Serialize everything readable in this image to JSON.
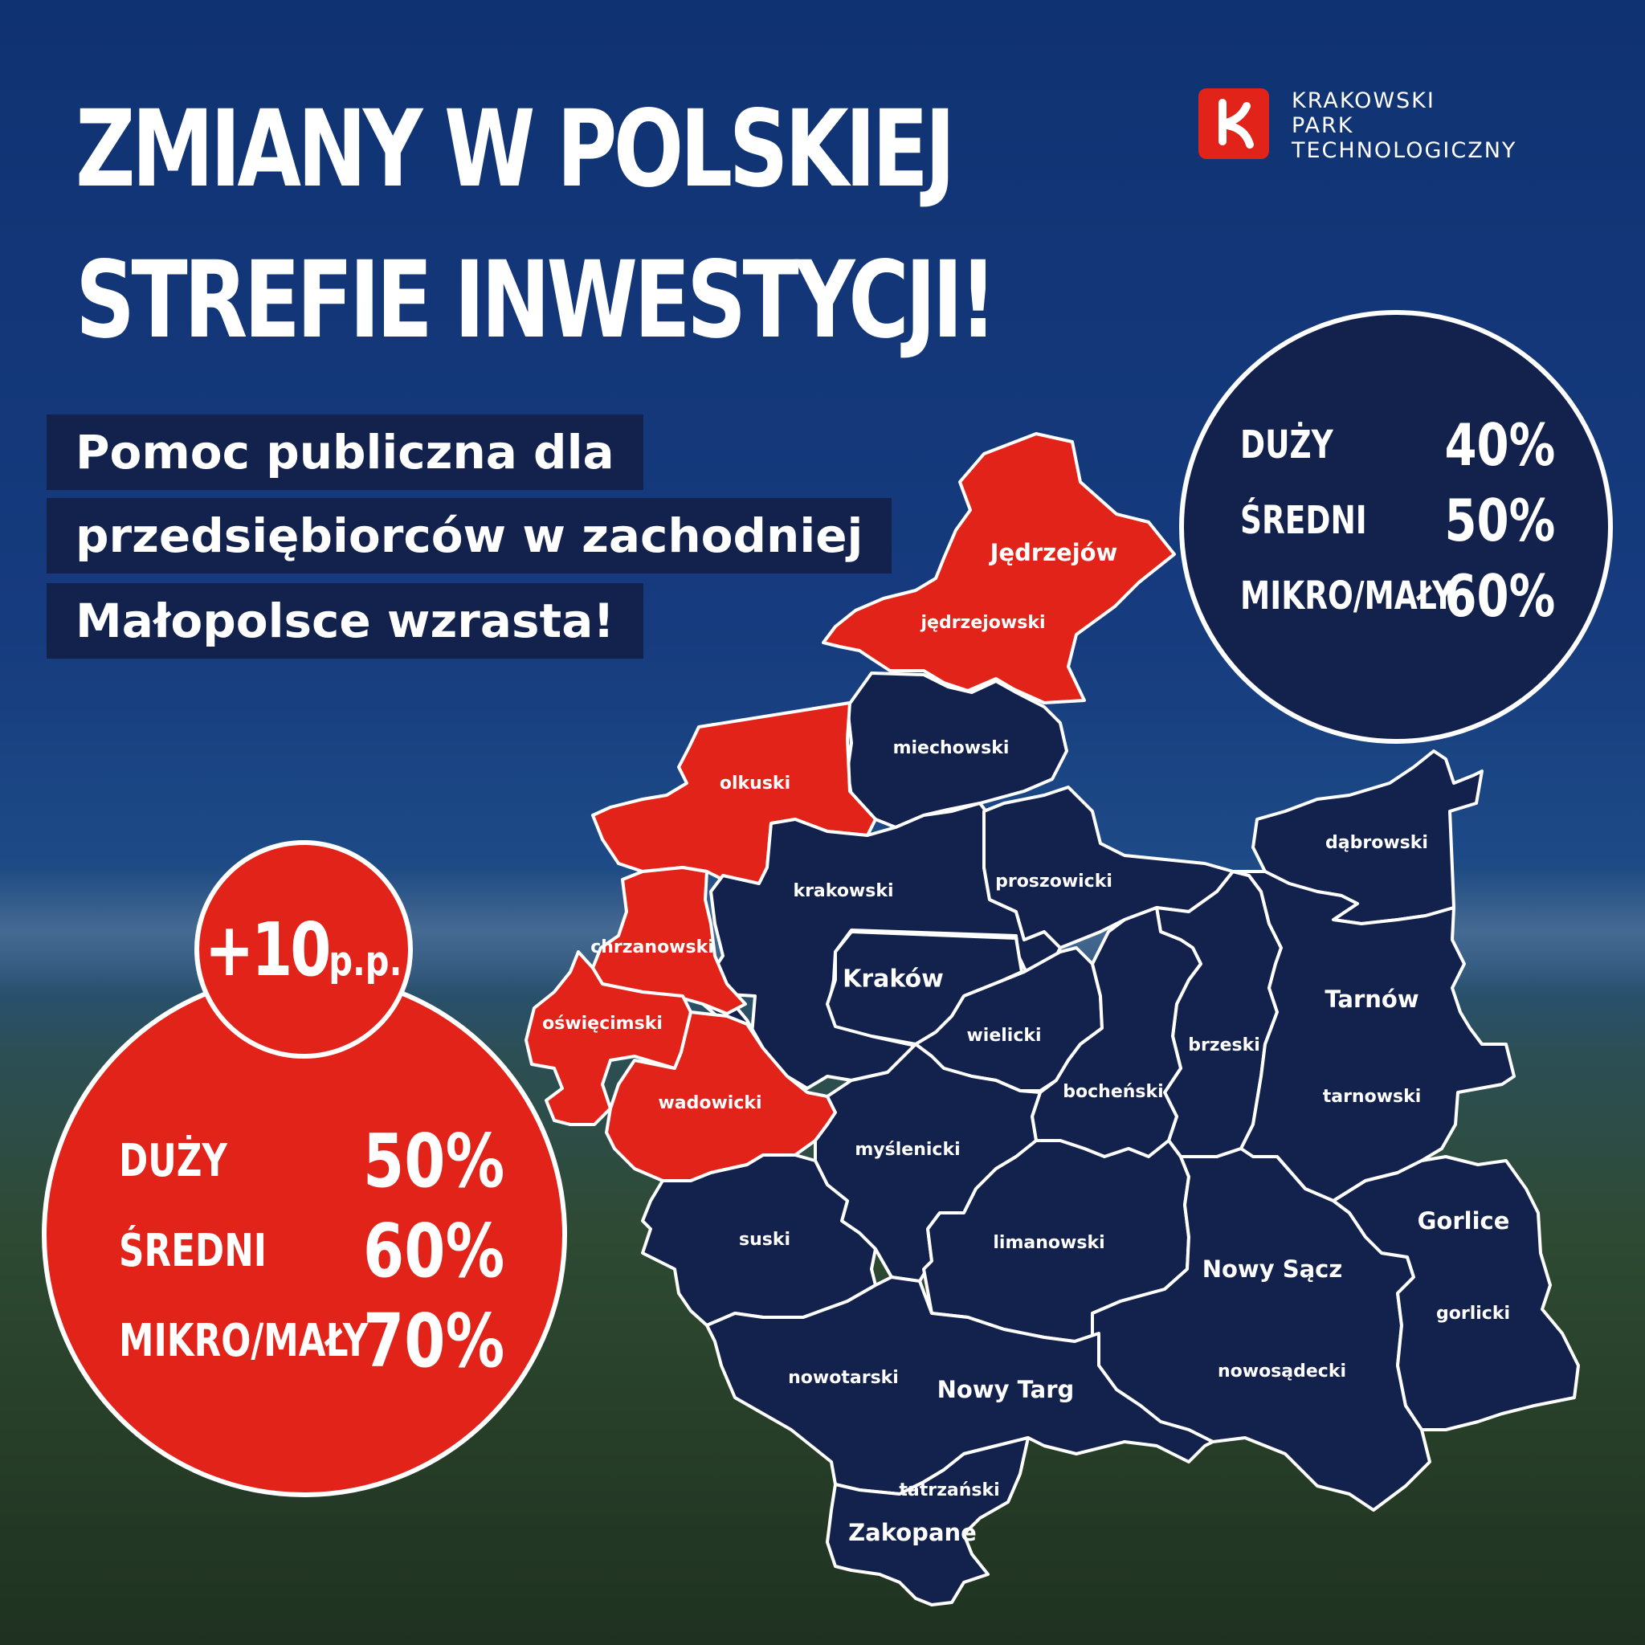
{
  "title": {
    "line1": "ZMIANY W POLSKIEJ",
    "line2": "STREFIE INWESTYCJI!"
  },
  "logo": {
    "mark": "k",
    "line1": "KRAKOWSKI",
    "line2": "PARK",
    "line3": "TECHNOLOGICZNY"
  },
  "subtitle": {
    "line1": "Pomoc publiczna dla",
    "line2": "przedsiębiorców w zachodniej",
    "line3": "Małopolsce wzrasta!"
  },
  "rates_current": {
    "rows": [
      {
        "label": "DUŻY",
        "value": "40%"
      },
      {
        "label": "ŚREDNI",
        "value": "50%"
      },
      {
        "label": "MIKRO/MAŁY",
        "value": "60%"
      }
    ]
  },
  "rates_new": {
    "badge": {
      "main": "+10",
      "unit": "p.p."
    },
    "rows": [
      {
        "label": "DUŻY",
        "value": "50%"
      },
      {
        "label": "ŚREDNI",
        "value": "60%"
      },
      {
        "label": "MIKRO/MAŁY",
        "value": "70%"
      }
    ]
  },
  "colors": {
    "red": "#e2231a",
    "navy": "#13224c",
    "border": "#ffffff"
  },
  "map": {
    "regions": [
      {
        "name": "jedrzejowski",
        "label": "jędrzejowski",
        "city": "Jędrzejów",
        "highlighted": true
      },
      {
        "name": "miechowski",
        "label": "miechowski",
        "highlighted": false
      },
      {
        "name": "olkuski",
        "label": "olkuski",
        "highlighted": true
      },
      {
        "name": "krakowski",
        "label": "krakowski",
        "highlighted": false
      },
      {
        "name": "krakow",
        "label": "Kraków",
        "highlighted": false
      },
      {
        "name": "proszowicki",
        "label": "proszowicki",
        "highlighted": false
      },
      {
        "name": "dabrowski",
        "label": "dąbrowski",
        "highlighted": false
      },
      {
        "name": "chrzanowski",
        "label": "chrzanowski",
        "highlighted": true
      },
      {
        "name": "oswiecimski",
        "label": "oświęcimski",
        "highlighted": true
      },
      {
        "name": "wadowicki",
        "label": "wadowicki",
        "highlighted": true
      },
      {
        "name": "wielicki",
        "label": "wielicki",
        "highlighted": false
      },
      {
        "name": "brzeski",
        "label": "brzeski",
        "highlighted": false
      },
      {
        "name": "tarnowski",
        "label": "tarnowski",
        "city": "Tarnów",
        "highlighted": false
      },
      {
        "name": "bochenski",
        "label": "bocheński",
        "highlighted": false
      },
      {
        "name": "myslenicki",
        "label": "myślenicki",
        "highlighted": false
      },
      {
        "name": "suski",
        "label": "suski",
        "highlighted": false
      },
      {
        "name": "limanowski",
        "label": "limanowski",
        "highlighted": false
      },
      {
        "name": "nowosadecki",
        "label": "nowosądecki",
        "city": "Nowy Sącz",
        "highlighted": false
      },
      {
        "name": "gorlicki",
        "label": "gorlicki",
        "city": "Gorlice",
        "highlighted": false
      },
      {
        "name": "nowotarski",
        "label": "nowotarski",
        "city": "Nowy Targ",
        "highlighted": false
      },
      {
        "name": "tatrzanski",
        "label": "tatrzański",
        "city": "Zakopane",
        "highlighted": false
      }
    ]
  }
}
